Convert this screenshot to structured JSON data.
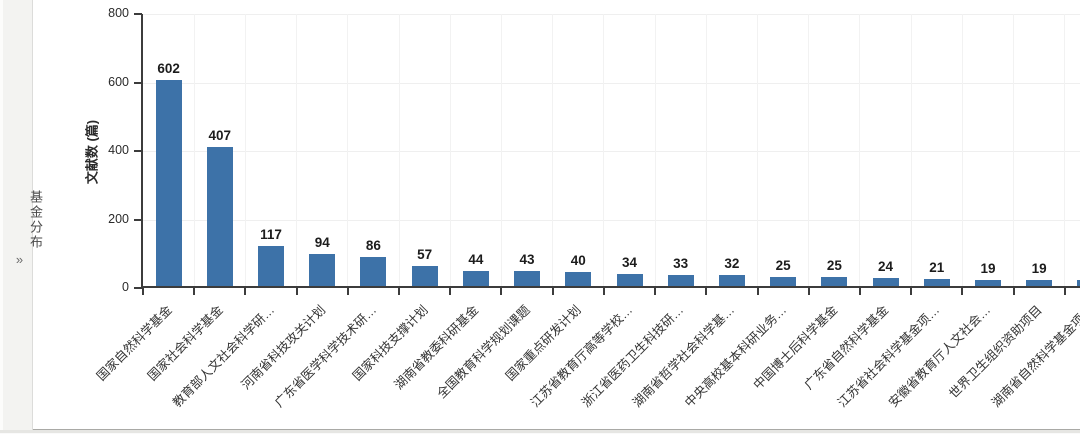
{
  "sidebar": {
    "title": "基金分布",
    "expand_icon": "»"
  },
  "chart_data": {
    "type": "bar",
    "title": "",
    "xlabel": "",
    "ylabel": "文献数 (篇)",
    "ylim": [
      0,
      800
    ],
    "yticks": [
      0,
      200,
      400,
      600,
      800
    ],
    "grid": true,
    "legend": "none",
    "bar_color": "#3d72a8",
    "categories": [
      "国家自然科学基金",
      "国家社会科学基金",
      "教育部人文社会科学研…",
      "河南省科技攻关计划",
      "广东省医学科学技术研…",
      "国家科技支撑计划",
      "湖南省教委科研基金",
      "全国教育科学规划课题",
      "国家重点研发计划",
      "江苏省教育厅高等学校…",
      "浙江省医药卫生科技研…",
      "湖南省哲学社会科学基…",
      "中央高校基本科研业务…",
      "中国博士后科学基金",
      "广东省自然科学基金",
      "江苏省社会科学基金项…",
      "安徽省教育厅人文社会…",
      "世界卫生组织资助项目",
      "湖南省自然科学基金项…"
    ],
    "values": [
      602,
      407,
      117,
      94,
      86,
      57,
      44,
      43,
      40,
      34,
      33,
      32,
      25,
      25,
      24,
      21,
      19,
      19,
      18
    ]
  }
}
